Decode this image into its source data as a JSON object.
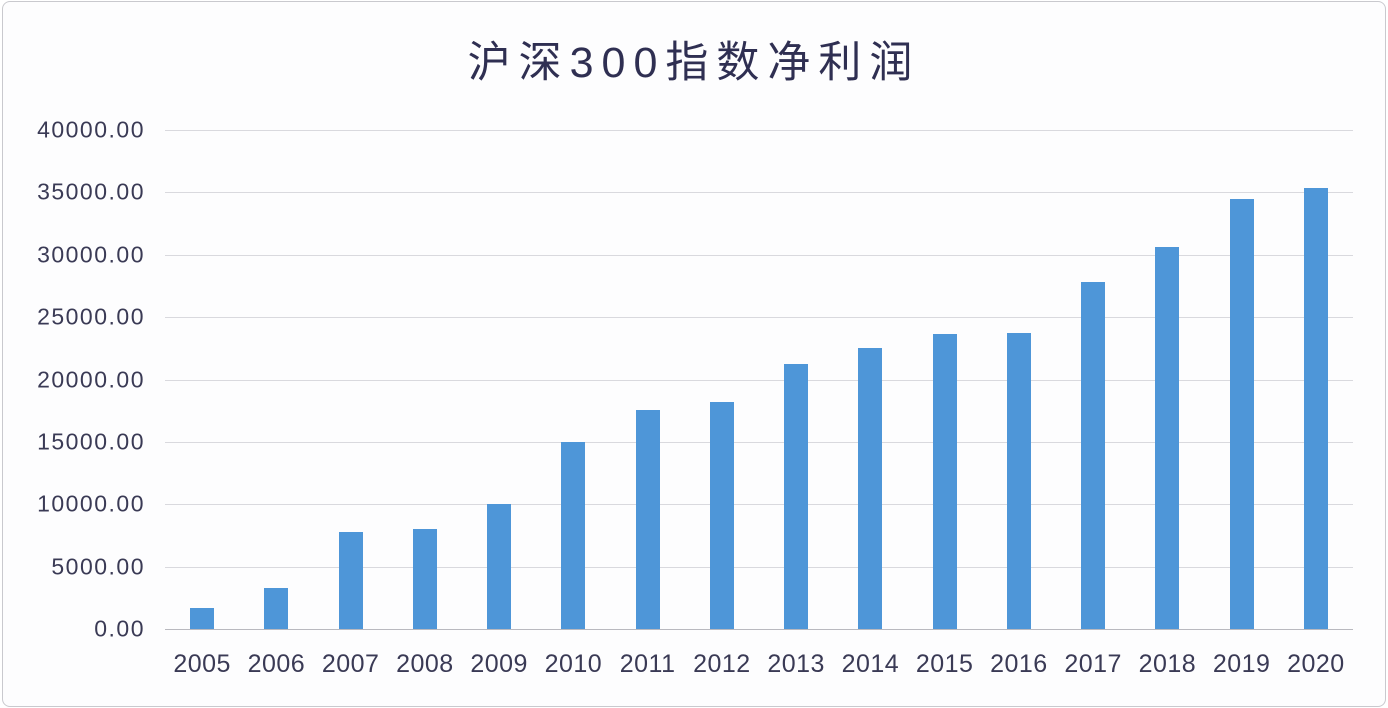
{
  "window": {
    "background": "#fdfdfe",
    "border_color": "#c9c9ce"
  },
  "chart_data": {
    "type": "bar",
    "title": "沪深300指数净利润",
    "categories": [
      "2005",
      "2006",
      "2007",
      "2008",
      "2009",
      "2010",
      "2011",
      "2012",
      "2013",
      "2014",
      "2015",
      "2016",
      "2017",
      "2018",
      "2019",
      "2020"
    ],
    "values": [
      1700,
      3300,
      7800,
      8000,
      10000,
      15000,
      17550,
      18200,
      21250,
      22550,
      23650,
      23700,
      27800,
      30650,
      34500,
      35350
    ],
    "xlabel": "",
    "ylabel": "",
    "ylim": [
      0,
      40000
    ],
    "ytick_step": 5000,
    "ytick_labels": [
      "0.00",
      "5000.00",
      "10000.00",
      "15000.00",
      "20000.00",
      "25000.00",
      "30000.00",
      "35000.00",
      "40000.00"
    ],
    "grid": "horizontal",
    "legend": "none",
    "bar_color": "#4E96D8",
    "title_color": "#2F2F52",
    "label_color": "#3A3A55",
    "gridline_color": "#D9D9DE",
    "axis_line_color": "#B9B9BF"
  }
}
